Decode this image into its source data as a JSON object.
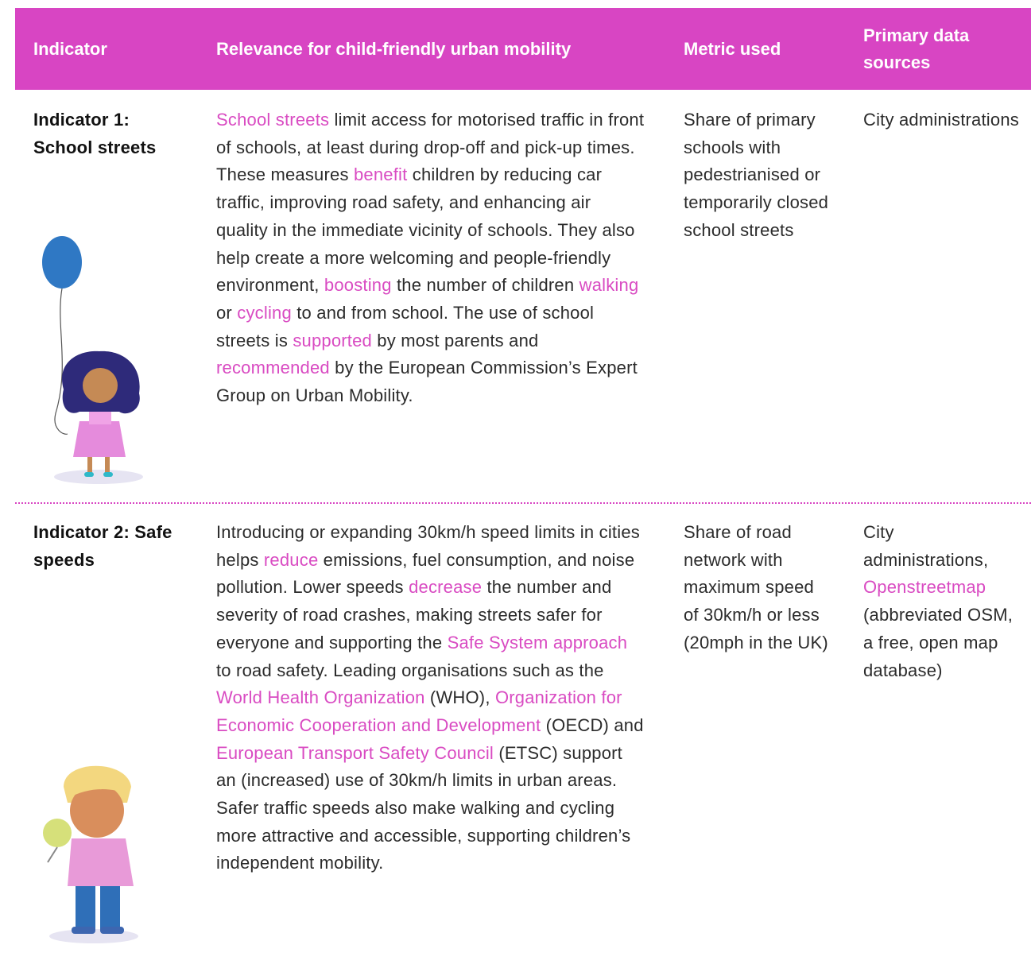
{
  "table": {
    "header": [
      "Indicator",
      "Relevance for child-friendly urban mobility",
      "Metric used",
      "Primary data sources"
    ],
    "rows": [
      {
        "indicator": "Indicator 1: School streets",
        "relevance": [
          {
            "text": "School streets",
            "link": true
          },
          {
            "text": " limit access for motorised traffic in front of schools, at least during drop-off and pick-up times. These measures "
          },
          {
            "text": "benefit",
            "link": true
          },
          {
            "text": " children by reducing car traffic, improving road safety, and enhancing air quality in the immediate vicinity of schools. They also help create a more welcoming and people-friendly environment, "
          },
          {
            "text": "boosting",
            "link": true
          },
          {
            "text": " the number of children "
          },
          {
            "text": "walking",
            "link": true
          },
          {
            "text": " or "
          },
          {
            "text": "cycling",
            "link": true
          },
          {
            "text": " to and from school. The use of school streets is "
          },
          {
            "text": "supported",
            "link": true
          },
          {
            "text": " by most parents and "
          },
          {
            "text": "recommended",
            "link": true
          },
          {
            "text": " by the European Commission’s Expert Group on Urban Mobility."
          }
        ],
        "metric": "Share of primary schools with pedestrianised or temporarily closed school streets",
        "sources": [
          {
            "text": "City administrations"
          }
        ]
      },
      {
        "indicator": "Indicator 2: Safe speeds",
        "relevance": [
          {
            "text": "Introducing or expanding 30km/h speed limits in cities helps "
          },
          {
            "text": "reduce",
            "link": true
          },
          {
            "text": " emissions, fuel consumption, and noise pollution. Lower speeds "
          },
          {
            "text": "decrease",
            "link": true
          },
          {
            "text": " the number and severity of road crashes, making streets safer for everyone and supporting the "
          },
          {
            "text": "Safe System approach",
            "link": true
          },
          {
            "text": " to road safety. Leading organisations such as the "
          },
          {
            "text": "World Health Organization",
            "link": true
          },
          {
            "text": " (WHO), "
          },
          {
            "text": "Organization for Economic Cooperation and Development",
            "link": true
          },
          {
            "text": " (OECD) and "
          },
          {
            "text": "European Transport Safety Council",
            "link": true
          },
          {
            "text": " (ETSC) support an (increased) use of 30km/h limits in urban areas. Safer traffic speeds also make walking and cycling more attractive and accessible, supporting children’s independent mobility."
          }
        ],
        "metric": "Share of road network with maximum speed of 30km/h or less (20mph in the UK)",
        "sources": [
          {
            "text": "City administrations, "
          },
          {
            "text": "Openstreetmap",
            "link": true
          },
          {
            "text": " (abbreviated OSM, a free, open map database)"
          }
        ]
      }
    ]
  }
}
